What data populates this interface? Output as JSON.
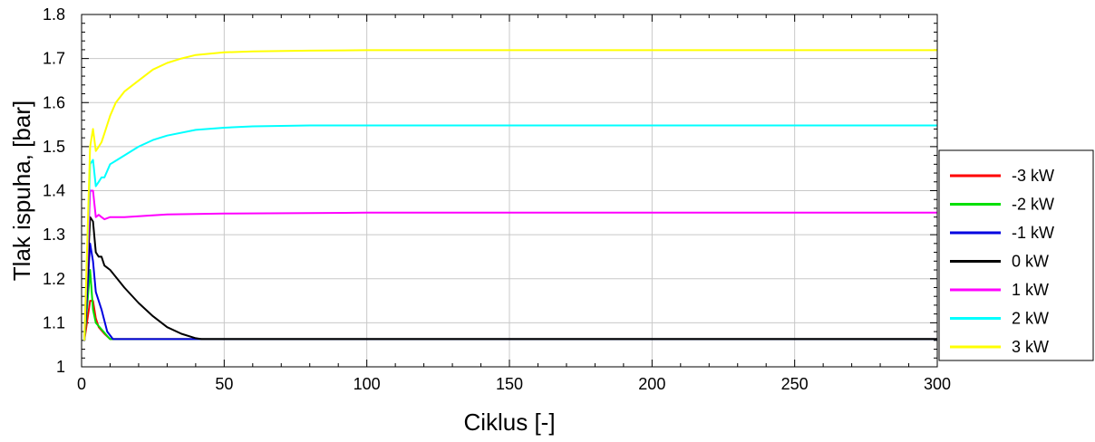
{
  "chart_data": {
    "type": "line",
    "xlabel": "Ciklus [-]",
    "ylabel": "Tlak ispuha, [bar]",
    "xlim": [
      0,
      300
    ],
    "ylim": [
      1.0,
      1.8
    ],
    "xticks": [
      0,
      50,
      100,
      150,
      200,
      250,
      300
    ],
    "yticks": [
      1.0,
      1.1,
      1.2,
      1.3,
      1.4,
      1.5,
      1.6,
      1.7,
      1.8
    ],
    "xtick_labels": [
      "0",
      "50",
      "100",
      "150",
      "200",
      "250",
      "300"
    ],
    "ytick_labels": [
      "1",
      "1.1",
      "1.2",
      "1.3",
      "1.4",
      "1.5",
      "1.6",
      "1.7",
      "1.8"
    ],
    "grid": true,
    "legend_position": "right",
    "series": [
      {
        "name": "-3 kW",
        "color": "#ff0000",
        "x": [
          1,
          3,
          4,
          5,
          6,
          8,
          10,
          300
        ],
        "y": [
          1.06,
          1.15,
          1.15,
          1.11,
          1.09,
          1.075,
          1.063,
          1.063
        ]
      },
      {
        "name": "-2 kW",
        "color": "#00e000",
        "x": [
          1,
          3,
          4,
          5,
          7,
          9,
          10,
          300
        ],
        "y": [
          1.06,
          1.22,
          1.13,
          1.1,
          1.085,
          1.07,
          1.063,
          1.063
        ]
      },
      {
        "name": "-1 kW",
        "color": "#0000e0",
        "x": [
          1,
          3,
          4,
          5,
          7,
          9,
          11,
          300
        ],
        "y": [
          1.06,
          1.28,
          1.24,
          1.17,
          1.13,
          1.08,
          1.063,
          1.063
        ]
      },
      {
        "name": "0 kW",
        "color": "#000000",
        "x": [
          1,
          3,
          4,
          5,
          6,
          7,
          8,
          9,
          10,
          15,
          20,
          25,
          30,
          35,
          40,
          42,
          300
        ],
        "y": [
          1.06,
          1.34,
          1.33,
          1.26,
          1.25,
          1.25,
          1.23,
          1.225,
          1.22,
          1.18,
          1.145,
          1.115,
          1.09,
          1.075,
          1.065,
          1.063,
          1.063
        ]
      },
      {
        "name": "1 kW",
        "color": "#ff00ff",
        "x": [
          1,
          3,
          4,
          5,
          6,
          7,
          8,
          10,
          15,
          20,
          30,
          50,
          100,
          150,
          200,
          250,
          300
        ],
        "y": [
          1.06,
          1.4,
          1.4,
          1.34,
          1.345,
          1.34,
          1.335,
          1.34,
          1.34,
          1.342,
          1.346,
          1.348,
          1.35,
          1.35,
          1.35,
          1.35,
          1.35
        ]
      },
      {
        "name": "2 kW",
        "color": "#00ffff",
        "x": [
          1,
          3,
          4,
          5,
          6,
          7,
          8,
          10,
          15,
          20,
          25,
          30,
          40,
          50,
          60,
          80,
          100,
          150,
          200,
          250,
          300
        ],
        "y": [
          1.06,
          1.46,
          1.47,
          1.41,
          1.42,
          1.43,
          1.43,
          1.46,
          1.48,
          1.5,
          1.515,
          1.525,
          1.538,
          1.543,
          1.546,
          1.548,
          1.548,
          1.548,
          1.548,
          1.548,
          1.548
        ]
      },
      {
        "name": "3 kW",
        "color": "#ffff00",
        "x": [
          1,
          3,
          4,
          5,
          6,
          7,
          8,
          10,
          12,
          15,
          20,
          25,
          30,
          35,
          40,
          50,
          60,
          80,
          100,
          150,
          200,
          250,
          300
        ],
        "y": [
          1.06,
          1.5,
          1.54,
          1.49,
          1.5,
          1.51,
          1.53,
          1.57,
          1.6,
          1.625,
          1.65,
          1.675,
          1.69,
          1.7,
          1.708,
          1.714,
          1.716,
          1.718,
          1.719,
          1.719,
          1.719,
          1.719,
          1.719
        ]
      }
    ]
  }
}
